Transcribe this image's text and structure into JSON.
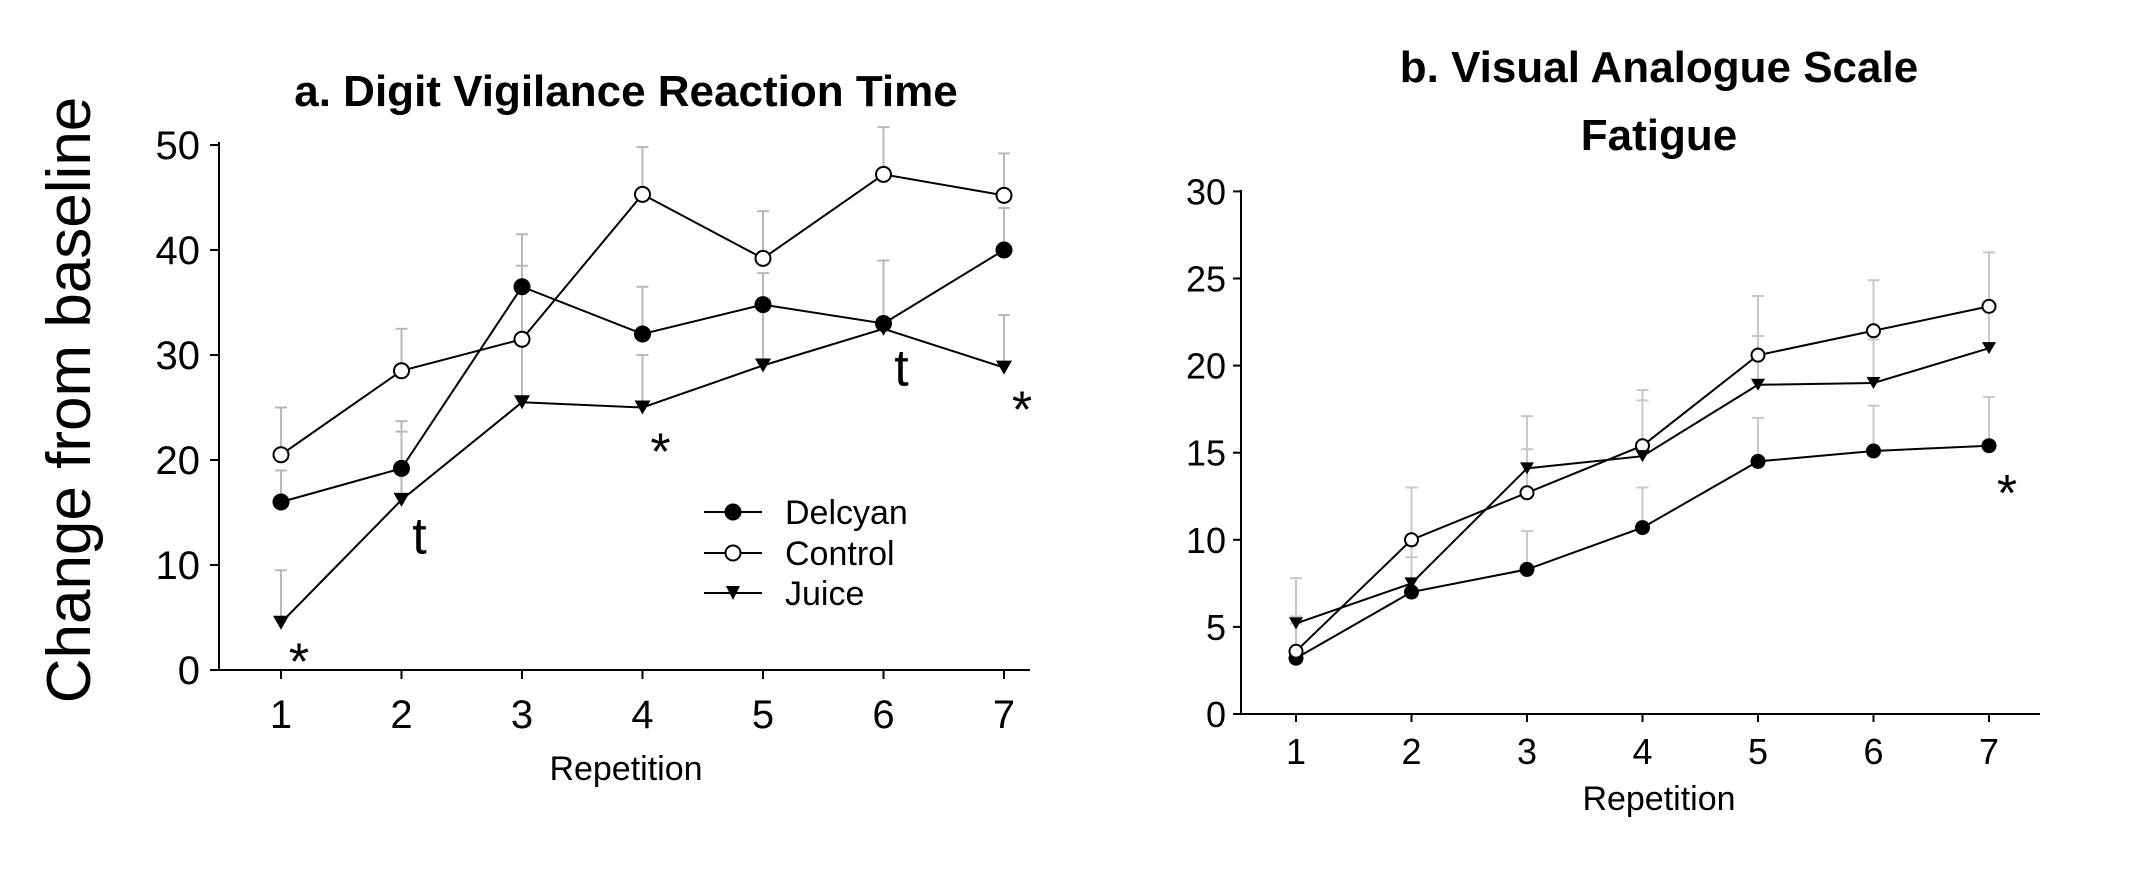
{
  "chart_data": [
    {
      "type": "line",
      "title": "a. Digit Vigilance Reaction Time",
      "xlabel": "Repetition",
      "ylabel": "Change from baseline",
      "x": [
        1,
        2,
        3,
        4,
        5,
        6,
        7
      ],
      "xticks": [
        "1",
        "2",
        "3",
        "4",
        "5",
        "6",
        "7"
      ],
      "ylim": [
        0,
        50
      ],
      "yticks": [
        0,
        10,
        20,
        30,
        40,
        50
      ],
      "legend_position": "lower-right",
      "series": [
        {
          "name": "Delcyan",
          "marker": "filled-circle",
          "values": [
            16,
            19.2,
            36.5,
            32,
            34.8,
            33,
            40
          ],
          "errors": [
            3,
            4.5,
            5,
            4.5,
            3,
            6,
            4
          ]
        },
        {
          "name": "Control",
          "marker": "open-circle",
          "values": [
            20.5,
            28.5,
            31.5,
            45.3,
            39.2,
            47.2,
            45.2
          ],
          "errors": [
            4.5,
            4,
            7,
            4.5,
            4.5,
            4.5,
            4
          ]
        },
        {
          "name": "Juice",
          "marker": "filled-triangle-down",
          "values": [
            4.5,
            16.2,
            25.5,
            25,
            29,
            32.5,
            28.8
          ],
          "errors": [
            5,
            6.5,
            6,
            5,
            6,
            6.5,
            5
          ]
        }
      ],
      "annotations": [
        {
          "text": "*",
          "x": 1,
          "y": 1
        },
        {
          "text": "t",
          "x": 2,
          "y": 13
        },
        {
          "text": "*",
          "x": 4,
          "y": 21
        },
        {
          "text": "t",
          "x": 6,
          "y": 29
        },
        {
          "text": "*",
          "x": 7,
          "y": 25
        }
      ]
    },
    {
      "type": "line",
      "title": "b. Visual Analogue Scale",
      "subtitle": "Fatigue",
      "xlabel": "Repetition",
      "ylabel": "",
      "x": [
        1,
        2,
        3,
        4,
        5,
        6,
        7
      ],
      "xticks": [
        "1",
        "2",
        "3",
        "4",
        "5",
        "6",
        "7"
      ],
      "ylim": [
        0,
        30
      ],
      "yticks": [
        0,
        5,
        10,
        15,
        20,
        25,
        30
      ],
      "series": [
        {
          "name": "Delcyan",
          "marker": "filled-circle",
          "values": [
            3.2,
            7,
            8.3,
            10.7,
            14.5,
            15.1,
            15.4
          ],
          "errors": [
            2,
            2,
            2.2,
            2.3,
            2.5,
            2.6,
            2.8
          ]
        },
        {
          "name": "Control",
          "marker": "open-circle",
          "values": [
            3.6,
            10,
            12.7,
            15.4,
            20.6,
            22,
            23.4
          ],
          "errors": [
            2,
            3,
            2.5,
            3.2,
            3.4,
            2.9,
            3.1
          ]
        },
        {
          "name": "Juice",
          "marker": "filled-triangle-down",
          "values": [
            5.2,
            7.5,
            14.1,
            14.8,
            18.9,
            19,
            21
          ],
          "errors": [
            2.6,
            2.2,
            3,
            3.2,
            2.8,
            2.5,
            2.5
          ]
        }
      ],
      "annotations": [
        {
          "text": "*",
          "x": 7,
          "y": 12.8
        }
      ]
    }
  ]
}
